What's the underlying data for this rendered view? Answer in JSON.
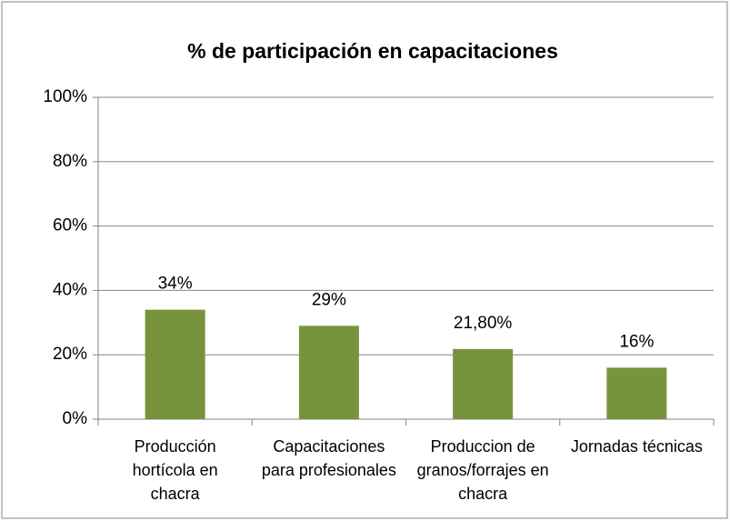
{
  "chart_data": {
    "type": "bar",
    "title": "% de participación en capacitaciones",
    "categories": [
      "Producción hortícola en chacra",
      "Capacitaciones para profesionales",
      "Produccion de granos/forrajes en chacra",
      "Jornadas técnicas"
    ],
    "values": [
      34,
      29,
      21.8,
      16
    ],
    "value_labels": [
      "34%",
      "29%",
      "21,80%",
      "16%"
    ],
    "color": "#77933c",
    "ylim": [
      0,
      100
    ],
    "yticks": [
      {
        "value": 0,
        "label": "0%"
      },
      {
        "value": 20,
        "label": "20%"
      },
      {
        "value": 40,
        "label": "40%"
      },
      {
        "value": 60,
        "label": "60%"
      },
      {
        "value": 80,
        "label": "80%"
      },
      {
        "value": 100,
        "label": "100%"
      }
    ],
    "grid": true
  }
}
